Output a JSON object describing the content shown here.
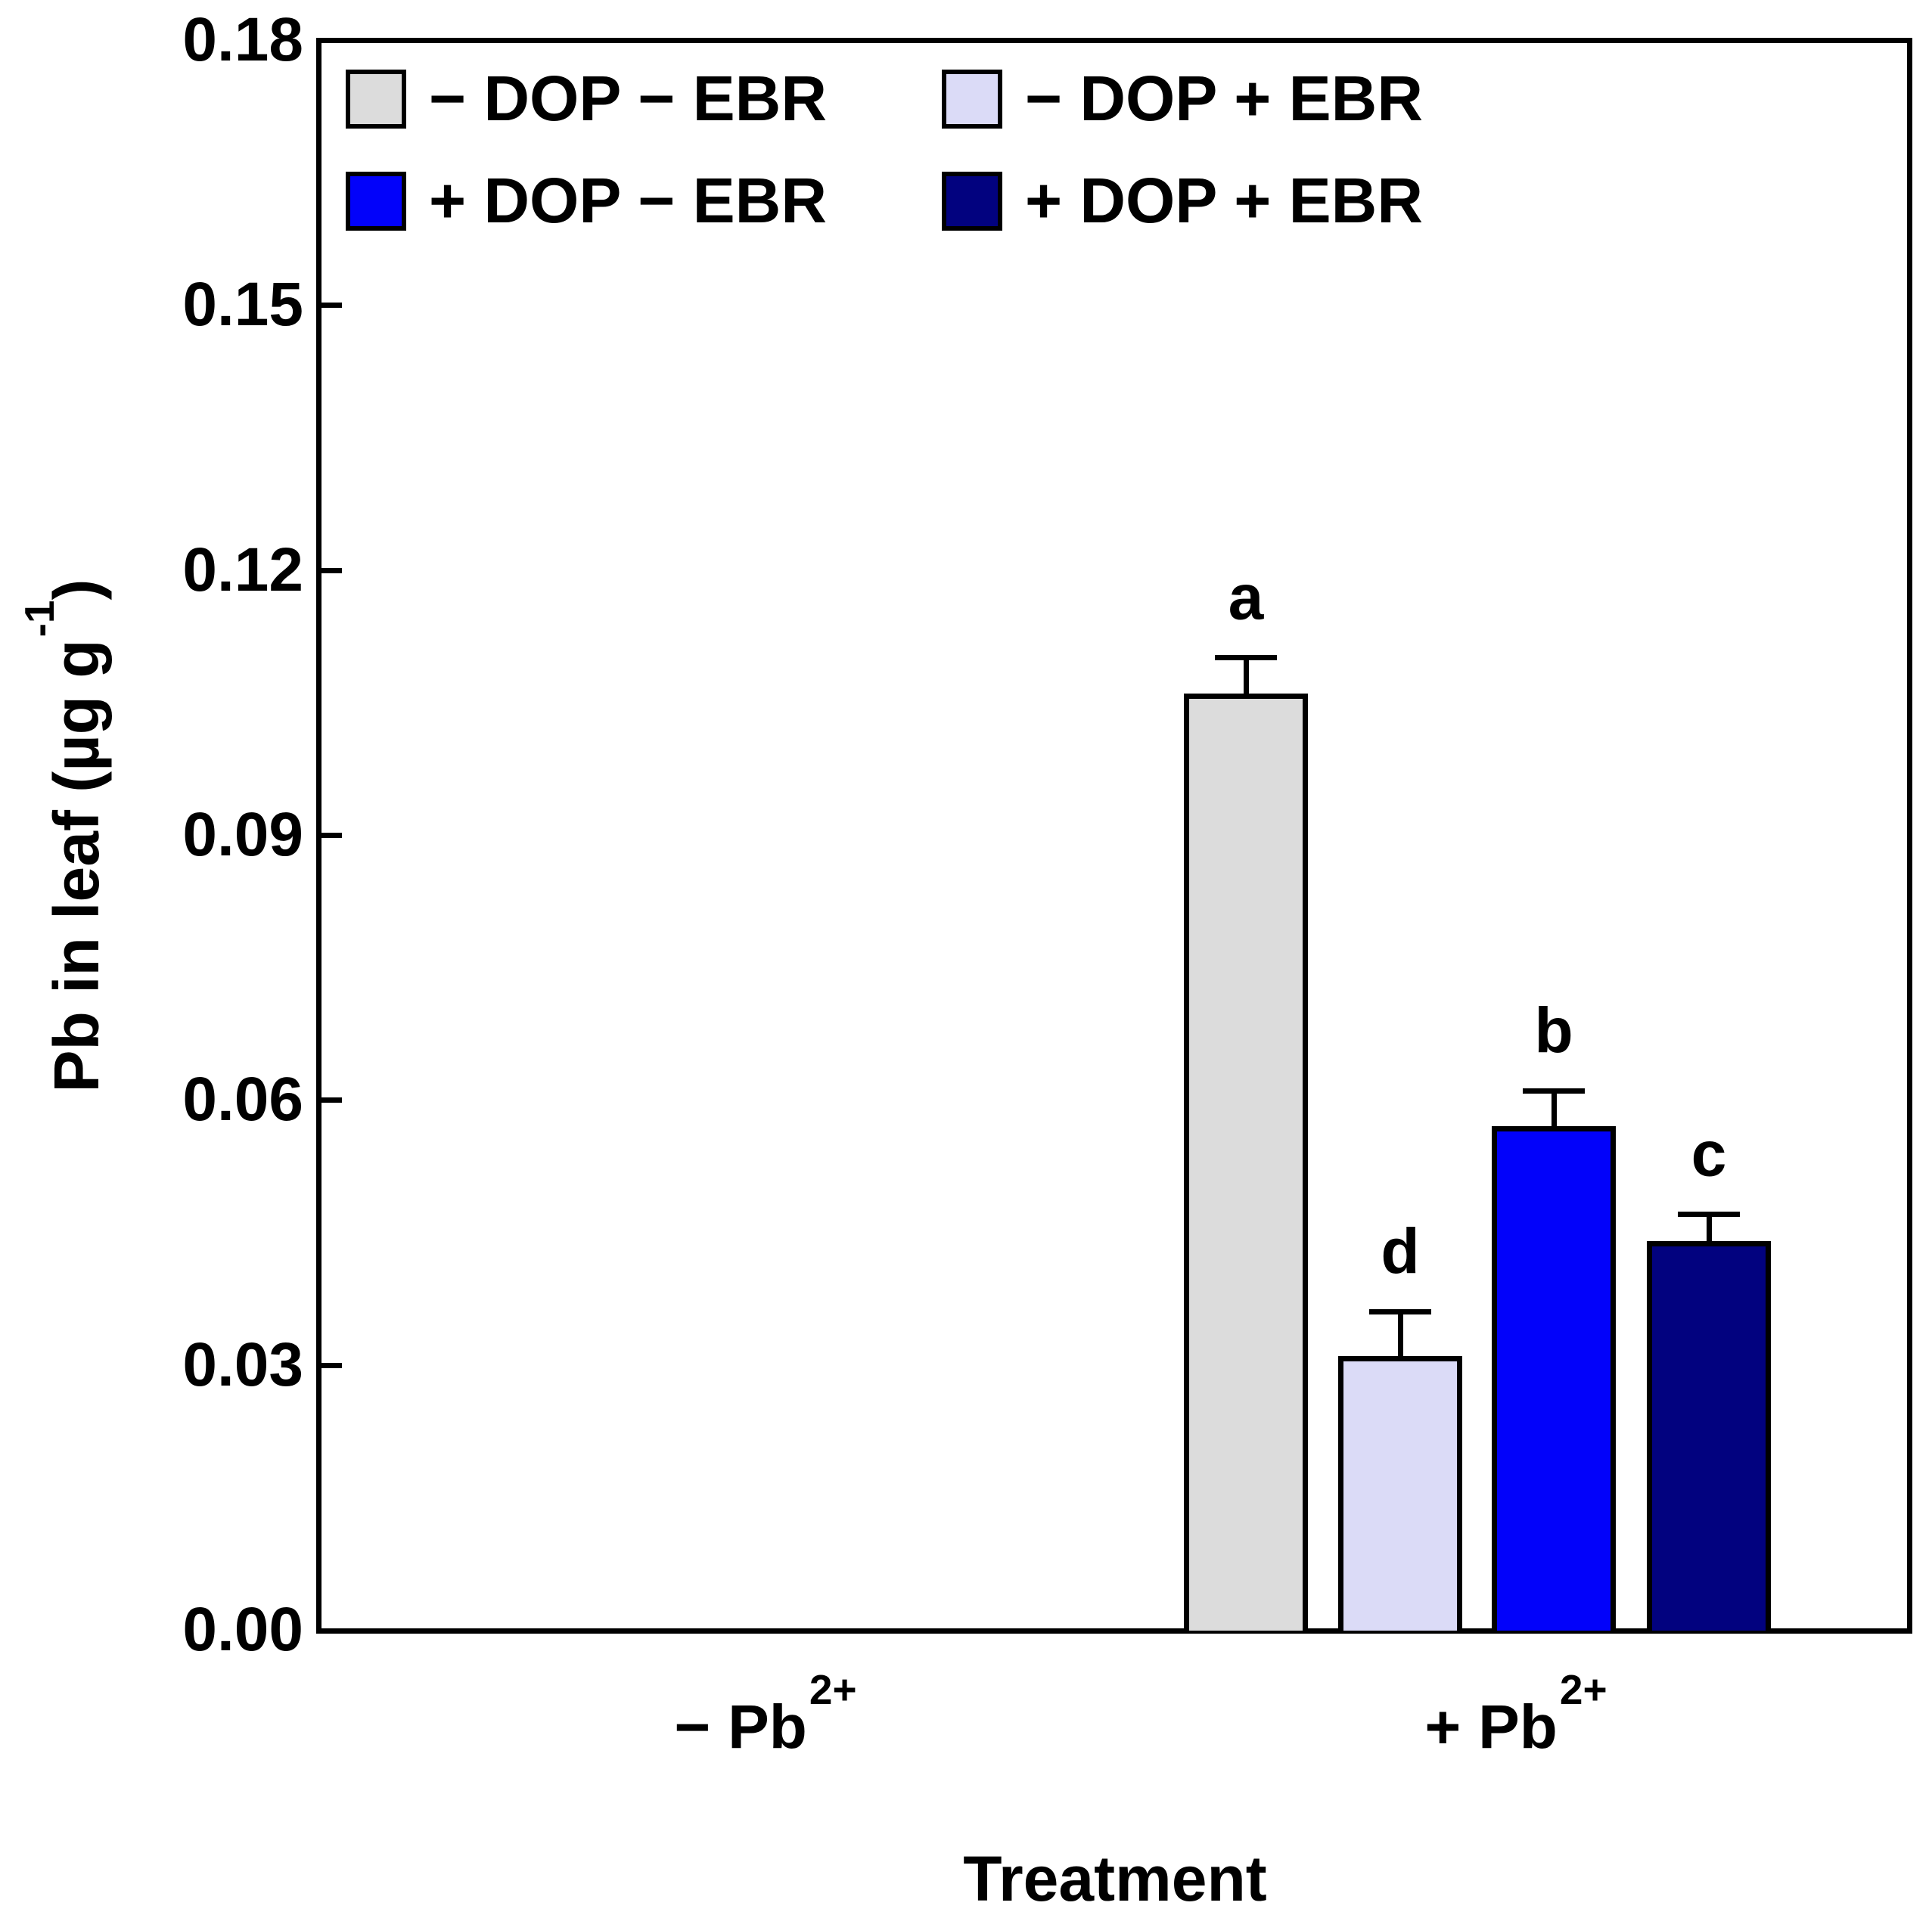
{
  "figure": {
    "background": "#ffffff",
    "frame_color": "#000000"
  },
  "legend": {
    "position": "top-left-inside",
    "items": [
      {
        "label": "− DOP − EBR",
        "color": "#dcdcdc"
      },
      {
        "label": "− DOP + EBR",
        "color": "#dbdbf7"
      },
      {
        "label": "+ DOP − EBR",
        "color": "#0202fa"
      },
      {
        "label": "+ DOP + EBR",
        "color": "#02027f"
      }
    ]
  },
  "yaxis": {
    "title_main": "Pb in leaf (µg g",
    "title_sup": "-1",
    "title_close": ")"
  },
  "xaxis": {
    "title": "Treatment",
    "labels": [
      {
        "main": "− Pb",
        "sup": "2+"
      },
      {
        "main": "+ Pb",
        "sup": "2+"
      }
    ]
  },
  "chart_data": {
    "type": "bar",
    "title": "",
    "xlabel": "Treatment",
    "ylabel": "Pb in leaf (µg g-1)",
    "ylim": [
      0,
      0.18
    ],
    "yticks": [
      0,
      0.03,
      0.06,
      0.09,
      0.12,
      0.15,
      0.18
    ],
    "categories": [
      "− Pb2+",
      "+ Pb2+"
    ],
    "grid": false,
    "legend_position": "top-left inside plot",
    "error_bars": "upper only, capped",
    "series": [
      {
        "name": "− DOP − EBR",
        "color": "#dcdcdc",
        "values": [
          0,
          0.106
        ],
        "errors": [
          0,
          0.004
        ],
        "letters": [
          "",
          "a"
        ]
      },
      {
        "name": "− DOP + EBR",
        "color": "#dbdbf7",
        "values": [
          0,
          0.031
        ],
        "errors": [
          0,
          0.005
        ],
        "letters": [
          "",
          "d"
        ]
      },
      {
        "name": "+ DOP − EBR",
        "color": "#0202fa",
        "values": [
          0,
          0.057
        ],
        "errors": [
          0,
          0.004
        ],
        "letters": [
          "",
          "b"
        ]
      },
      {
        "name": "+ DOP + EBR",
        "color": "#02027f",
        "values": [
          0,
          0.044
        ],
        "errors": [
          0,
          0.003
        ],
        "letters": [
          "",
          "c"
        ]
      }
    ]
  }
}
